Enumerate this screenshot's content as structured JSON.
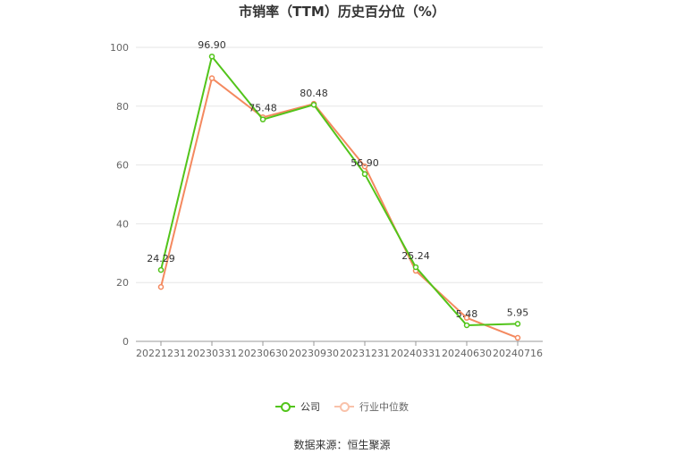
{
  "chart_data": {
    "type": "line",
    "title": "市销率（TTM）历史百分位（%）",
    "categories": [
      "20221231",
      "20230331",
      "20230630",
      "20230930",
      "20231231",
      "20240331",
      "20240630",
      "20240716"
    ],
    "series": [
      {
        "name": "公司",
        "color": "#52c41a",
        "values": [
          24.29,
          96.9,
          75.48,
          80.48,
          56.9,
          25.24,
          5.48,
          5.95
        ],
        "data_labels": [
          "24.29",
          "96.90",
          "75.48",
          "80.48",
          "56.90",
          "25.24",
          "5.48",
          "5.95"
        ]
      },
      {
        "name": "行业中位数",
        "color": "#f4895f",
        "values": [
          18.5,
          89.5,
          76.2,
          80.8,
          59.5,
          24.0,
          8.0,
          1.2
        ]
      }
    ],
    "ylim": [
      0,
      100
    ],
    "yticks": [
      "0",
      "20",
      "40",
      "60",
      "80",
      "100"
    ],
    "grid": true,
    "legend_position": "bottom"
  },
  "source_text": "数据来源：恒生聚源"
}
